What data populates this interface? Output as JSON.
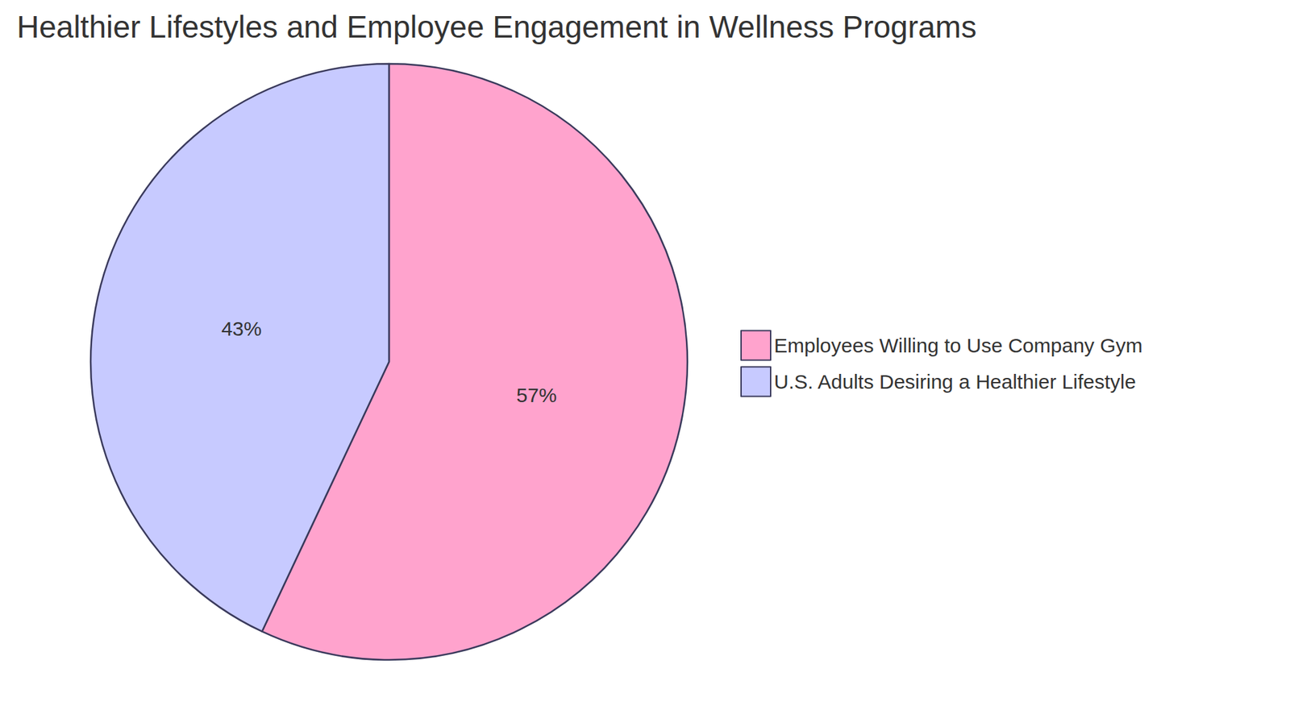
{
  "chart_data": {
    "type": "pie",
    "title": "Healthier Lifestyles and Employee Engagement in Wellness Programs",
    "categories": [
      "Employees Willing to Use Company Gym",
      "U.S. Adults Desiring a Healthier Lifestyle"
    ],
    "values": [
      57,
      43
    ],
    "value_labels": [
      "57%",
      "43%"
    ],
    "colors": [
      "#ffa3cd",
      "#c7caff"
    ],
    "data_labels": true,
    "legend": "right"
  }
}
